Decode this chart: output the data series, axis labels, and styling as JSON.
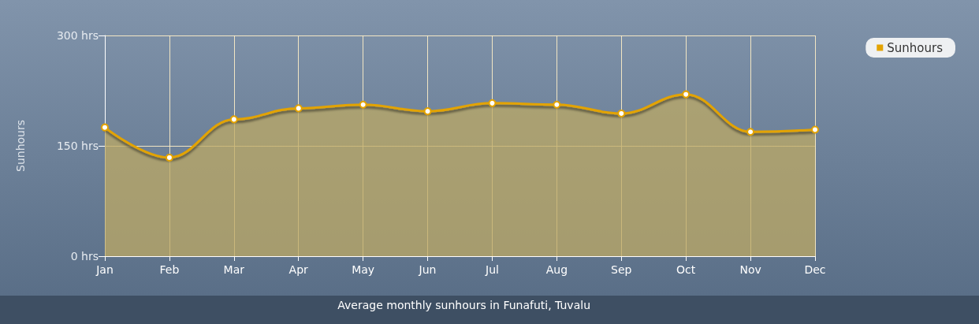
{
  "chart_data": {
    "type": "area",
    "title": "Average monthly sunhours in Funafuti, Tuvalu",
    "ylabel": "Sunhours",
    "categories": [
      "Jan",
      "Feb",
      "Mar",
      "Apr",
      "May",
      "Jun",
      "Jul",
      "Aug",
      "Sep",
      "Oct",
      "Nov",
      "Dec"
    ],
    "series": [
      {
        "name": "Sunhours",
        "color": "#e3a300",
        "values": [
          175,
          134,
          186,
          201,
          206,
          197,
          208,
          206,
          194,
          220,
          169,
          172
        ]
      }
    ],
    "ylim": [
      0,
      300
    ],
    "yticks": [
      {
        "value": 0,
        "label": "0 hrs"
      },
      {
        "value": 150,
        "label": "150 hrs"
      },
      {
        "value": 300,
        "label": "300 hrs"
      }
    ],
    "grid": true,
    "legend": "top right",
    "marker": "circle",
    "line_style": "solid"
  }
}
